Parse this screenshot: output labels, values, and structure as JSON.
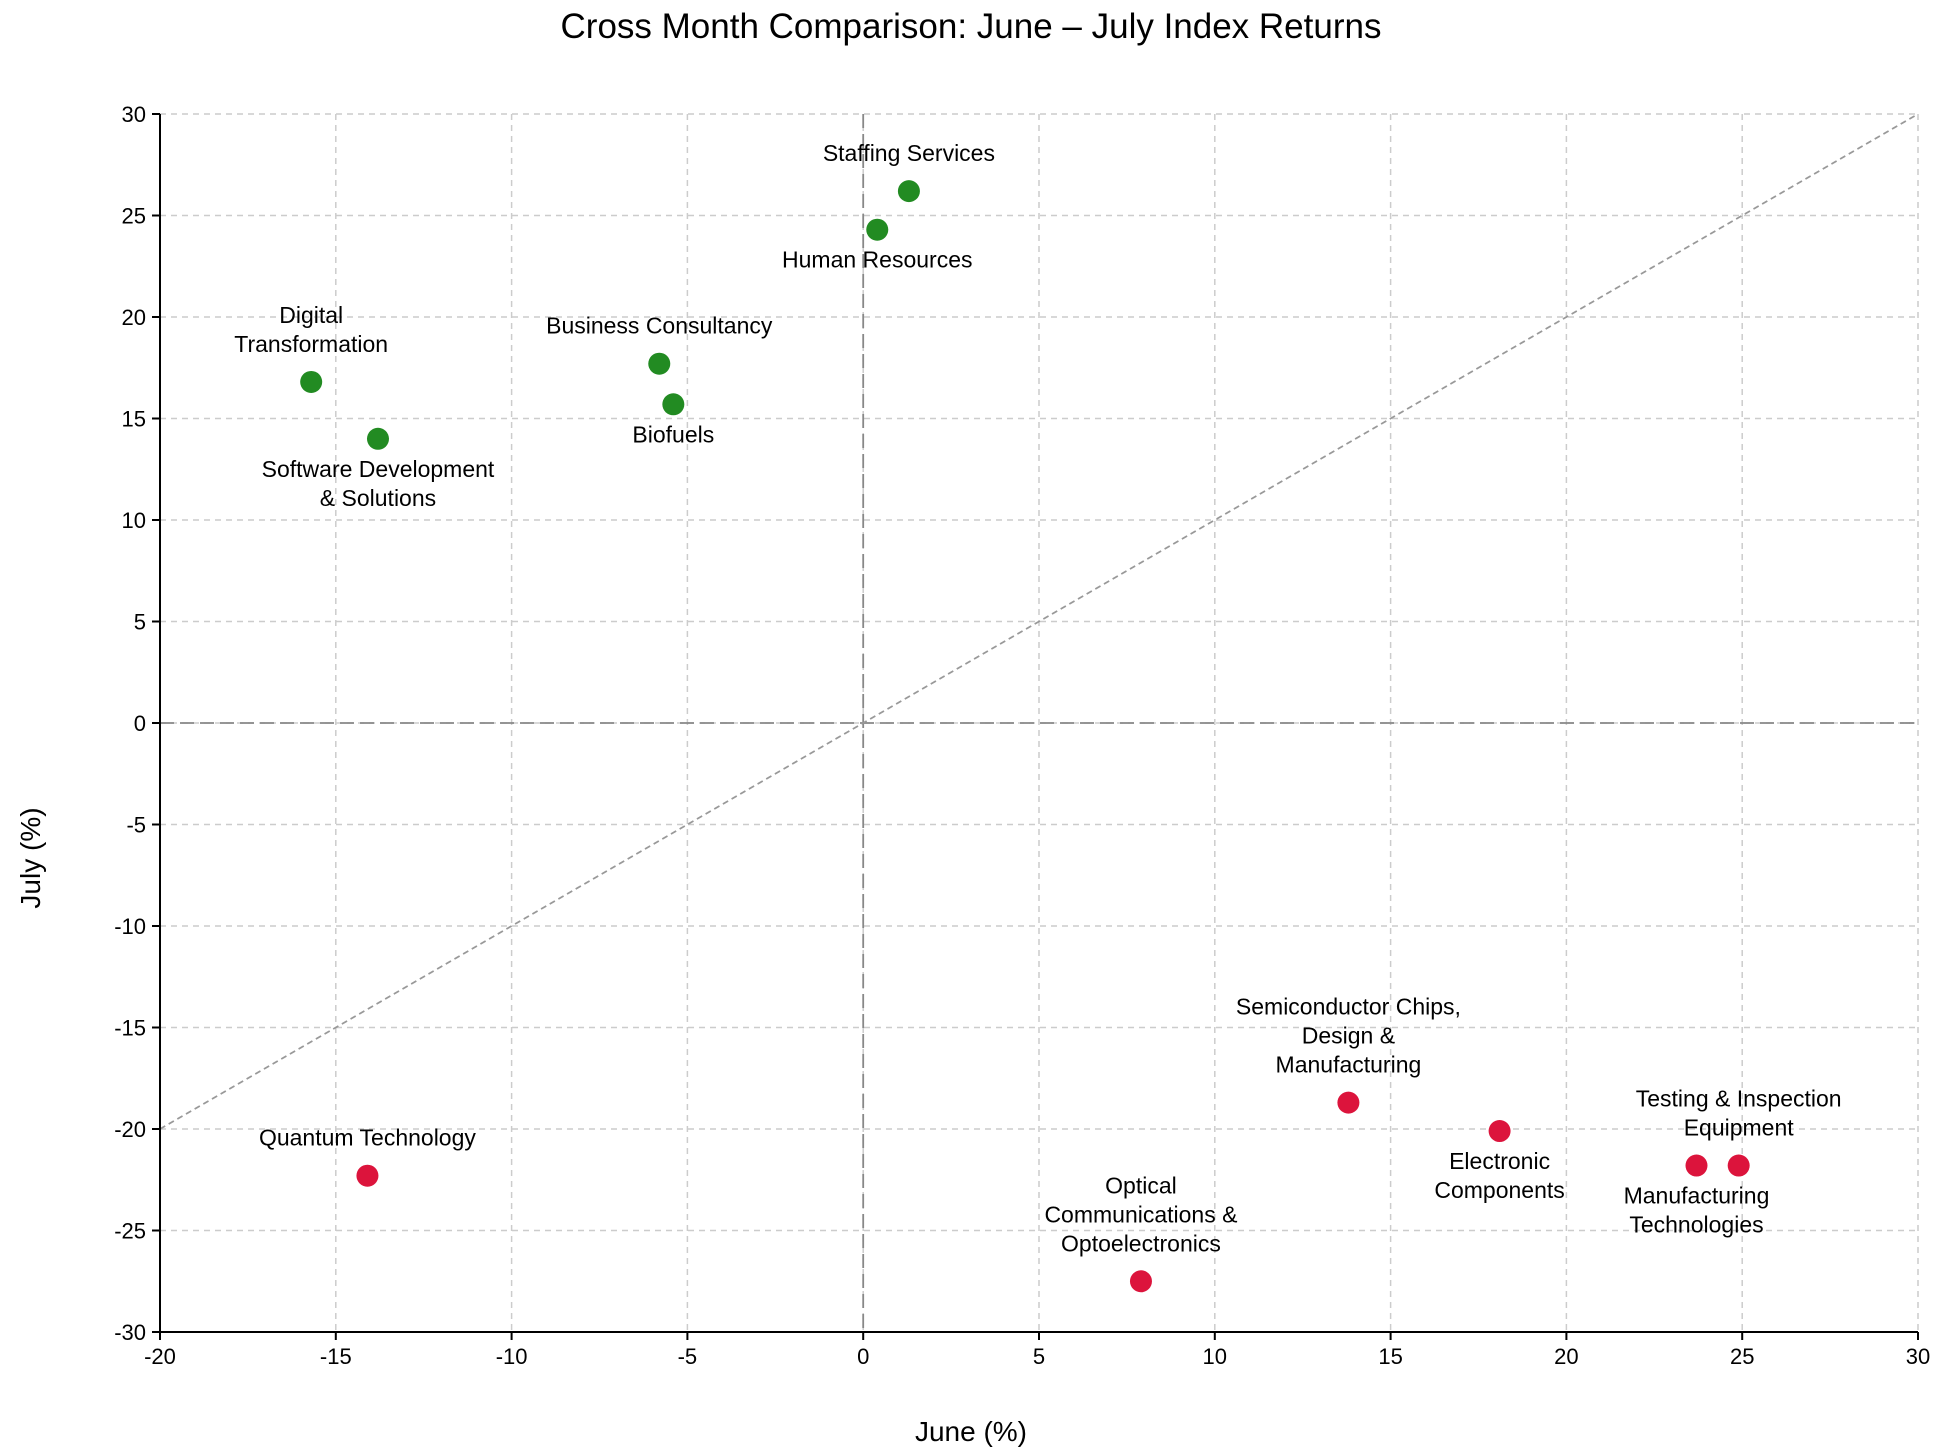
{
  "chart_data": {
    "type": "scatter",
    "title": "Cross Month Comparison: June – July Index Returns",
    "xlabel": "June (%)",
    "ylabel": "July (%)",
    "xlim": [
      -20,
      30
    ],
    "ylim": [
      -30,
      30
    ],
    "xticks": [
      -20,
      -15,
      -10,
      -5,
      0,
      5,
      10,
      15,
      20,
      25,
      30
    ],
    "yticks": [
      -30,
      -25,
      -20,
      -15,
      -10,
      -5,
      0,
      5,
      10,
      15,
      20,
      25,
      30
    ],
    "grid": true,
    "reference_lines": [
      "x = 0",
      "y = 0",
      "y = x"
    ],
    "colors": {
      "positive": "#228b22",
      "negative": "#dc143c"
    },
    "points": [
      {
        "label": [
          "Staffing Services"
        ],
        "x": 1.3,
        "y": 26.2,
        "group": "positive",
        "label_pos": "above"
      },
      {
        "label": [
          "Human Resources"
        ],
        "x": 0.4,
        "y": 24.3,
        "group": "positive",
        "label_pos": "below"
      },
      {
        "label": [
          "Digital",
          "Transformation"
        ],
        "x": -15.7,
        "y": 16.8,
        "group": "positive",
        "label_pos": "above"
      },
      {
        "label": [
          "Business Consultancy"
        ],
        "x": -5.8,
        "y": 17.7,
        "group": "positive",
        "label_pos": "above"
      },
      {
        "label": [
          "Biofuels"
        ],
        "x": -5.4,
        "y": 15.7,
        "group": "positive",
        "label_pos": "below"
      },
      {
        "label": [
          "Software Development",
          "& Solutions"
        ],
        "x": -13.8,
        "y": 14.0,
        "group": "positive",
        "label_pos": "below"
      },
      {
        "label": [
          "Quantum Technology"
        ],
        "x": -14.1,
        "y": -22.3,
        "group": "negative",
        "label_pos": "above"
      },
      {
        "label": [
          "Semiconductor Chips,",
          "Design &",
          "Manufacturing"
        ],
        "x": 13.8,
        "y": -18.7,
        "group": "negative",
        "label_pos": "above"
      },
      {
        "label": [
          "Electronic",
          "Components"
        ],
        "x": 18.1,
        "y": -20.1,
        "group": "negative",
        "label_pos": "below"
      },
      {
        "label": [
          "Testing & Inspection",
          "Equipment"
        ],
        "x": 24.9,
        "y": -21.8,
        "group": "negative",
        "label_pos": "above"
      },
      {
        "label": [
          "Manufacturing",
          "Technologies"
        ],
        "x": 23.7,
        "y": -21.8,
        "group": "negative",
        "label_pos": "below"
      },
      {
        "label": [
          "Optical",
          "Communications &",
          "Optoelectronics"
        ],
        "x": 7.9,
        "y": -27.5,
        "group": "negative",
        "label_pos": "above"
      }
    ]
  }
}
